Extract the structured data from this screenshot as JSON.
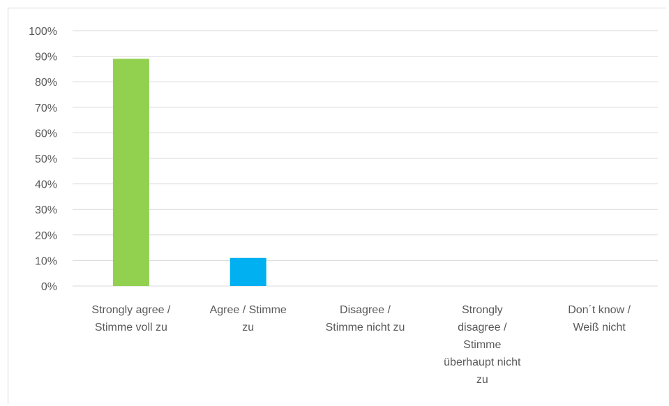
{
  "chart_data": {
    "type": "bar",
    "categories": [
      [
        "Strongly agree /",
        "Stimme voll zu"
      ],
      [
        "Agree / Stimme",
        "zu"
      ],
      [
        "Disagree /",
        "Stimme nicht zu"
      ],
      [
        "Strongly",
        "disagree /",
        "Stimme",
        "überhaupt nicht",
        "zu"
      ],
      [
        "Don´t know /",
        "Weiß nicht"
      ]
    ],
    "values": [
      89,
      11,
      0,
      0,
      0
    ],
    "colors": [
      "#92d050",
      "#00b0f0",
      "#a5a5a5",
      "#ffc000",
      "#4472c4"
    ],
    "ylim": [
      0,
      100
    ],
    "ytick_values": [
      0,
      10,
      20,
      30,
      40,
      50,
      60,
      70,
      80,
      90,
      100
    ],
    "ytick_labels": [
      "0%",
      "10%",
      "20%",
      "30%",
      "40%",
      "50%",
      "60%",
      "70%",
      "80%",
      "90%",
      "100%"
    ],
    "grid": true,
    "legend": "none"
  }
}
